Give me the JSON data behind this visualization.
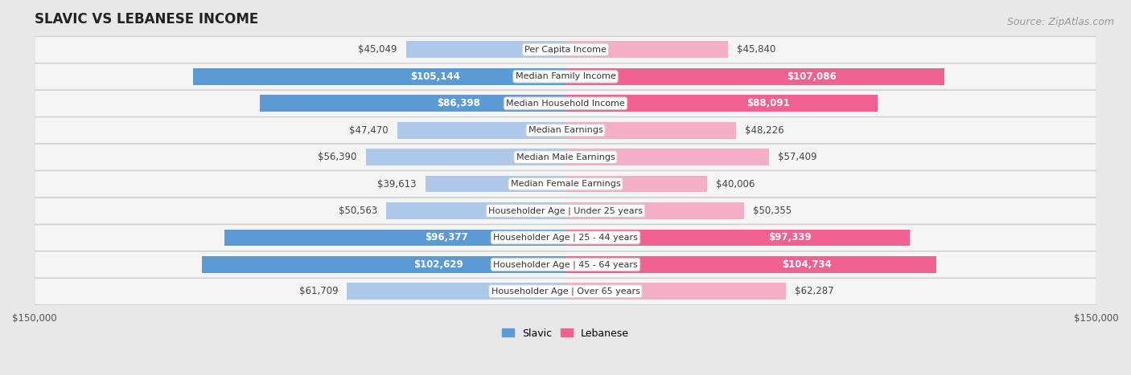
{
  "title": "SLAVIC VS LEBANESE INCOME",
  "source": "Source: ZipAtlas.com",
  "categories": [
    "Per Capita Income",
    "Median Family Income",
    "Median Household Income",
    "Median Earnings",
    "Median Male Earnings",
    "Median Female Earnings",
    "Householder Age | Under 25 years",
    "Householder Age | 25 - 44 years",
    "Householder Age | 45 - 64 years",
    "Householder Age | Over 65 years"
  ],
  "slavic_values": [
    45049,
    105144,
    86398,
    47470,
    56390,
    39613,
    50563,
    96377,
    102629,
    61709
  ],
  "lebanese_values": [
    45840,
    107086,
    88091,
    48226,
    57409,
    40006,
    50355,
    97339,
    104734,
    62287
  ],
  "slavic_labels": [
    "$45,049",
    "$105,144",
    "$86,398",
    "$47,470",
    "$56,390",
    "$39,613",
    "$50,563",
    "$96,377",
    "$102,629",
    "$61,709"
  ],
  "lebanese_labels": [
    "$45,840",
    "$107,086",
    "$88,091",
    "$48,226",
    "$57,409",
    "$40,006",
    "$50,355",
    "$97,339",
    "$104,734",
    "$62,287"
  ],
  "slavic_color_light": "#adc8e8",
  "slavic_color_dark": "#5b9bd5",
  "lebanese_color_light": "#f4aec8",
  "lebanese_color_dark": "#f06090",
  "max_value": 150000,
  "bar_height": 0.62,
  "background_color": "#e8e8e8",
  "row_bg_color": "#f5f5f5",
  "row_border_color": "#d0d0d0",
  "label_threshold": 80000,
  "title_fontsize": 12,
  "source_fontsize": 9,
  "bar_label_fontsize": 8.5,
  "category_fontsize": 8,
  "axis_label_fontsize": 8.5,
  "legend_fontsize": 9
}
